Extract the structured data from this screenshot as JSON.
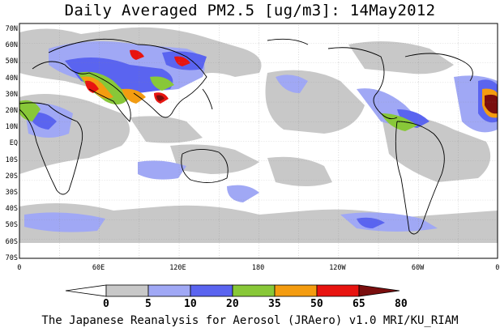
{
  "title": "Daily Averaged PM2.5 [ug/m3]: 14May2012",
  "footer": "The Japanese Reanalysis for Aerosol (JRAero) v1.0 MRI/KU_RIAM",
  "lat_labels": [
    "70N",
    "60N",
    "50N",
    "40N",
    "30N",
    "20N",
    "10N",
    "EQ",
    "10S",
    "20S",
    "30S",
    "40S",
    "50S",
    "60S",
    "70S"
  ],
  "lon_labels": [
    "0",
    "60E",
    "120E",
    "180",
    "120W",
    "60W",
    "0"
  ],
  "colorbar": {
    "labels": [
      "0",
      "5",
      "10",
      "20",
      "35",
      "50",
      "65",
      "80"
    ],
    "colors": [
      "#ffffff",
      "#c8c8c8",
      "#a0a8f5",
      "#5a64f0",
      "#88c838",
      "#f49c10",
      "#e81410",
      "#7a0e0e"
    ]
  }
}
